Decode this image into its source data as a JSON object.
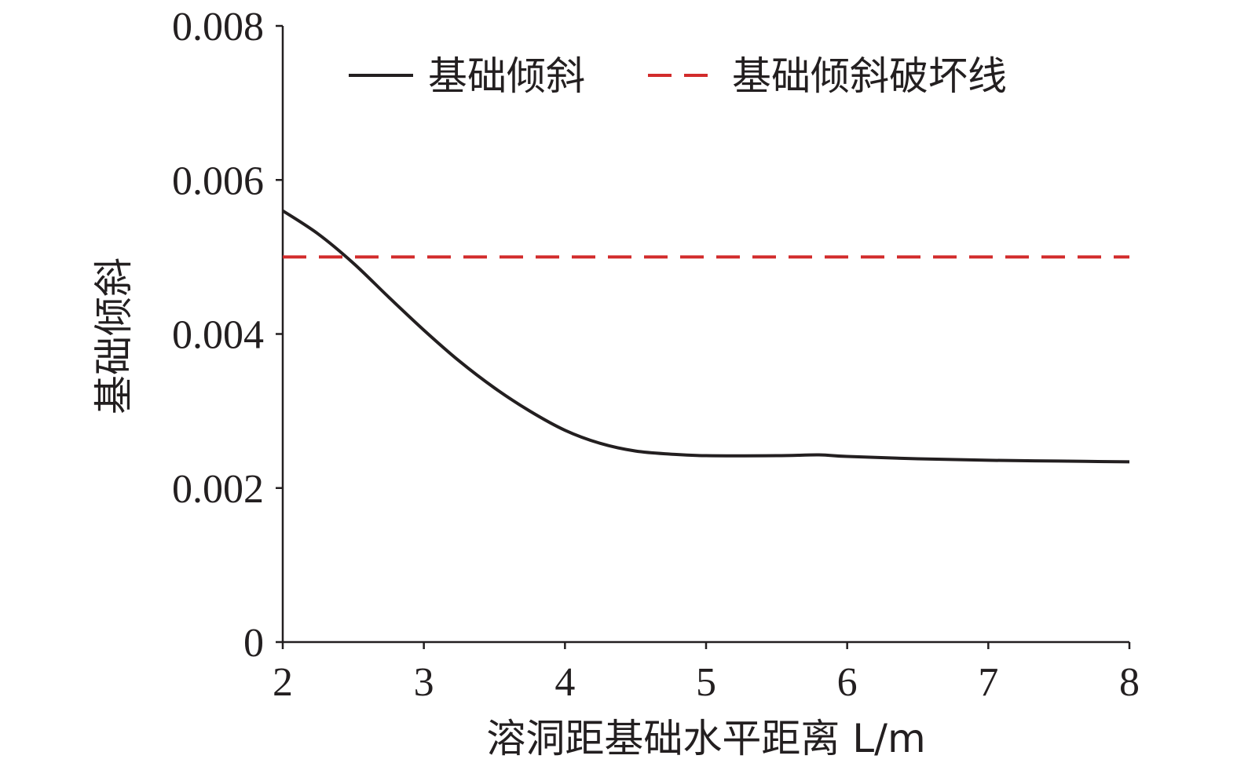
{
  "chart_data": {
    "type": "line",
    "title": "",
    "xlabel": "溶洞距基础水平距离 L/m",
    "ylabel": "基础倾斜",
    "xlim": [
      2,
      8
    ],
    "ylim": [
      0,
      0.008
    ],
    "x_ticks": [
      "2",
      "3",
      "4",
      "5",
      "6",
      "7",
      "8"
    ],
    "y_ticks": [
      "0",
      "0.002",
      "0.004",
      "0.006",
      "0.008"
    ],
    "grid": false,
    "legend_position": "top",
    "series": [
      {
        "name": "基础倾斜",
        "style": "solid",
        "color": "#231f20",
        "points": [
          [
            2.0,
            0.0056
          ],
          [
            2.25,
            0.0053
          ],
          [
            2.5,
            0.00492
          ],
          [
            2.75,
            0.00448
          ],
          [
            3.0,
            0.00405
          ],
          [
            3.25,
            0.00365
          ],
          [
            3.5,
            0.0033
          ],
          [
            3.75,
            0.003
          ],
          [
            4.0,
            0.00275
          ],
          [
            4.25,
            0.00258
          ],
          [
            4.5,
            0.00248
          ],
          [
            4.75,
            0.00244
          ],
          [
            5.0,
            0.00242
          ],
          [
            5.5,
            0.00242
          ],
          [
            5.8,
            0.00243
          ],
          [
            6.0,
            0.00241
          ],
          [
            6.5,
            0.00238
          ],
          [
            7.0,
            0.00236
          ],
          [
            7.5,
            0.00235
          ],
          [
            8.0,
            0.00234
          ]
        ]
      },
      {
        "name": "基础倾斜破坏线",
        "style": "dashed",
        "color": "#d22b2b",
        "points": [
          [
            2.0,
            0.005
          ],
          [
            8.0,
            0.005
          ]
        ]
      }
    ]
  }
}
